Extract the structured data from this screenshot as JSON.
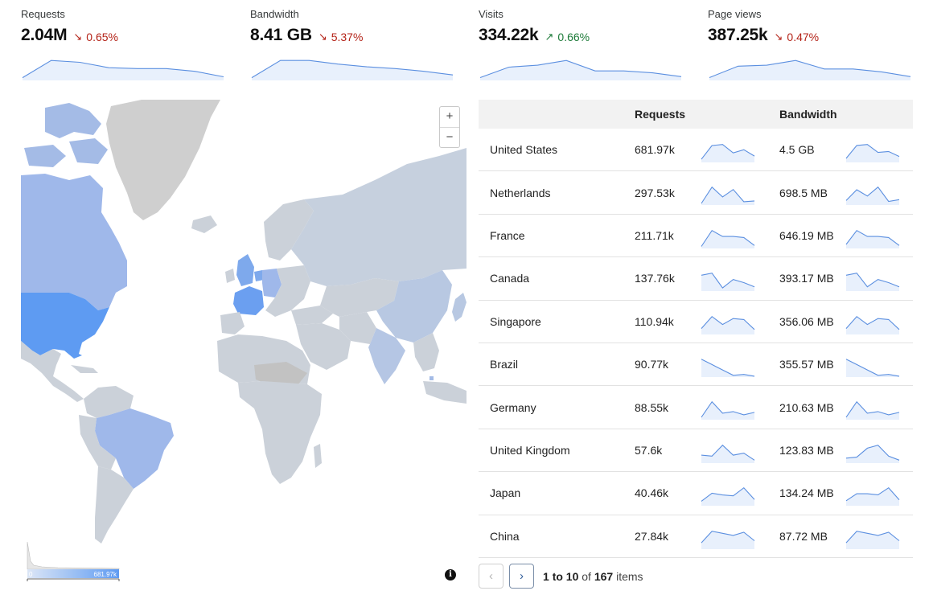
{
  "kpis": [
    {
      "label": "Requests",
      "value": "2.04M",
      "delta": "0.65%",
      "direction": "down",
      "spark": [
        3,
        22,
        20,
        14,
        13,
        13,
        10,
        4
      ]
    },
    {
      "label": "Bandwidth",
      "value": "8.41 GB",
      "delta": "5.37%",
      "direction": "down",
      "spark": [
        3,
        22,
        22,
        18,
        15,
        13,
        10,
        6
      ]
    },
    {
      "label": "Visits",
      "value": "334.22k",
      "delta": "0.66%",
      "direction": "up",
      "spark": [
        3,
        14,
        16,
        21,
        10,
        10,
        8,
        4
      ]
    },
    {
      "label": "Page views",
      "value": "387.25k",
      "delta": "0.47%",
      "direction": "down",
      "spark": [
        3,
        15,
        16,
        21,
        12,
        12,
        9,
        4
      ]
    }
  ],
  "colors": {
    "up": "#1e7b3a",
    "down": "#b42318",
    "spark": "#5b8fe0",
    "spark_fill": "#e8f0fc",
    "map_base": "#cbd1d9",
    "map_high": "#5e9bf2",
    "map_none": "#cfcfcf"
  },
  "map": {
    "zoom_in": "+",
    "zoom_out": "−",
    "info_icon": "i",
    "legend_ticks": [
      "0",
      "681.97k"
    ]
  },
  "table": {
    "headers": {
      "country": "",
      "requests": "Requests",
      "bandwidth": "Bandwidth"
    },
    "rows": [
      {
        "country": "United States",
        "requests": "681.97k",
        "bandwidth": "4.5 GB",
        "req_spark": [
          3,
          16,
          17,
          9,
          12,
          6
        ],
        "bw_spark": [
          4,
          17,
          18,
          10,
          11,
          6
        ]
      },
      {
        "country": "Netherlands",
        "requests": "297.53k",
        "bandwidth": "698.5 MB",
        "req_spark": [
          2,
          22,
          10,
          19,
          4,
          5
        ],
        "bw_spark": [
          5,
          17,
          10,
          20,
          4,
          6
        ]
      },
      {
        "country": "France",
        "requests": "211.71k",
        "bandwidth": "646.19 MB",
        "req_spark": [
          2,
          18,
          12,
          12,
          11,
          3
        ],
        "bw_spark": [
          4,
          18,
          12,
          12,
          11,
          3
        ]
      },
      {
        "country": "Canada",
        "requests": "137.76k",
        "bandwidth": "393.17 MB",
        "req_spark": [
          15,
          17,
          3,
          11,
          8,
          4
        ],
        "bw_spark": [
          15,
          17,
          4,
          11,
          8,
          4
        ]
      },
      {
        "country": "Singapore",
        "requests": "110.94k",
        "bandwidth": "356.06 MB",
        "req_spark": [
          6,
          18,
          10,
          16,
          15,
          5
        ],
        "bw_spark": [
          6,
          18,
          10,
          16,
          15,
          5
        ]
      },
      {
        "country": "Brazil",
        "requests": "90.77k",
        "bandwidth": "355.57 MB",
        "req_spark": [
          20,
          14,
          8,
          2,
          3,
          1
        ],
        "bw_spark": [
          20,
          14,
          8,
          2,
          3,
          1
        ]
      },
      {
        "country": "Germany",
        "requests": "88.55k",
        "bandwidth": "210.63 MB",
        "req_spark": [
          3,
          22,
          8,
          10,
          6,
          9
        ],
        "bw_spark": [
          3,
          22,
          8,
          10,
          6,
          9
        ]
      },
      {
        "country": "United Kingdom",
        "requests": "57.6k",
        "bandwidth": "123.83 MB",
        "req_spark": [
          8,
          7,
          18,
          8,
          10,
          3
        ],
        "bw_spark": [
          5,
          6,
          15,
          18,
          7,
          3
        ]
      },
      {
        "country": "Japan",
        "requests": "40.46k",
        "bandwidth": "134.24 MB",
        "req_spark": [
          5,
          14,
          12,
          11,
          20,
          7
        ],
        "bw_spark": [
          5,
          12,
          12,
          11,
          18,
          6
        ]
      },
      {
        "country": "China",
        "requests": "27.84k",
        "bandwidth": "87.72 MB",
        "req_spark": [
          6,
          17,
          15,
          13,
          16,
          8
        ],
        "bw_spark": [
          6,
          17,
          15,
          13,
          16,
          8
        ]
      }
    ]
  },
  "pagination": {
    "prev": "‹",
    "next": "›",
    "from": "1",
    "to_word": "to",
    "to": "10",
    "of_word": "of",
    "total": "167",
    "items_word": "items"
  }
}
